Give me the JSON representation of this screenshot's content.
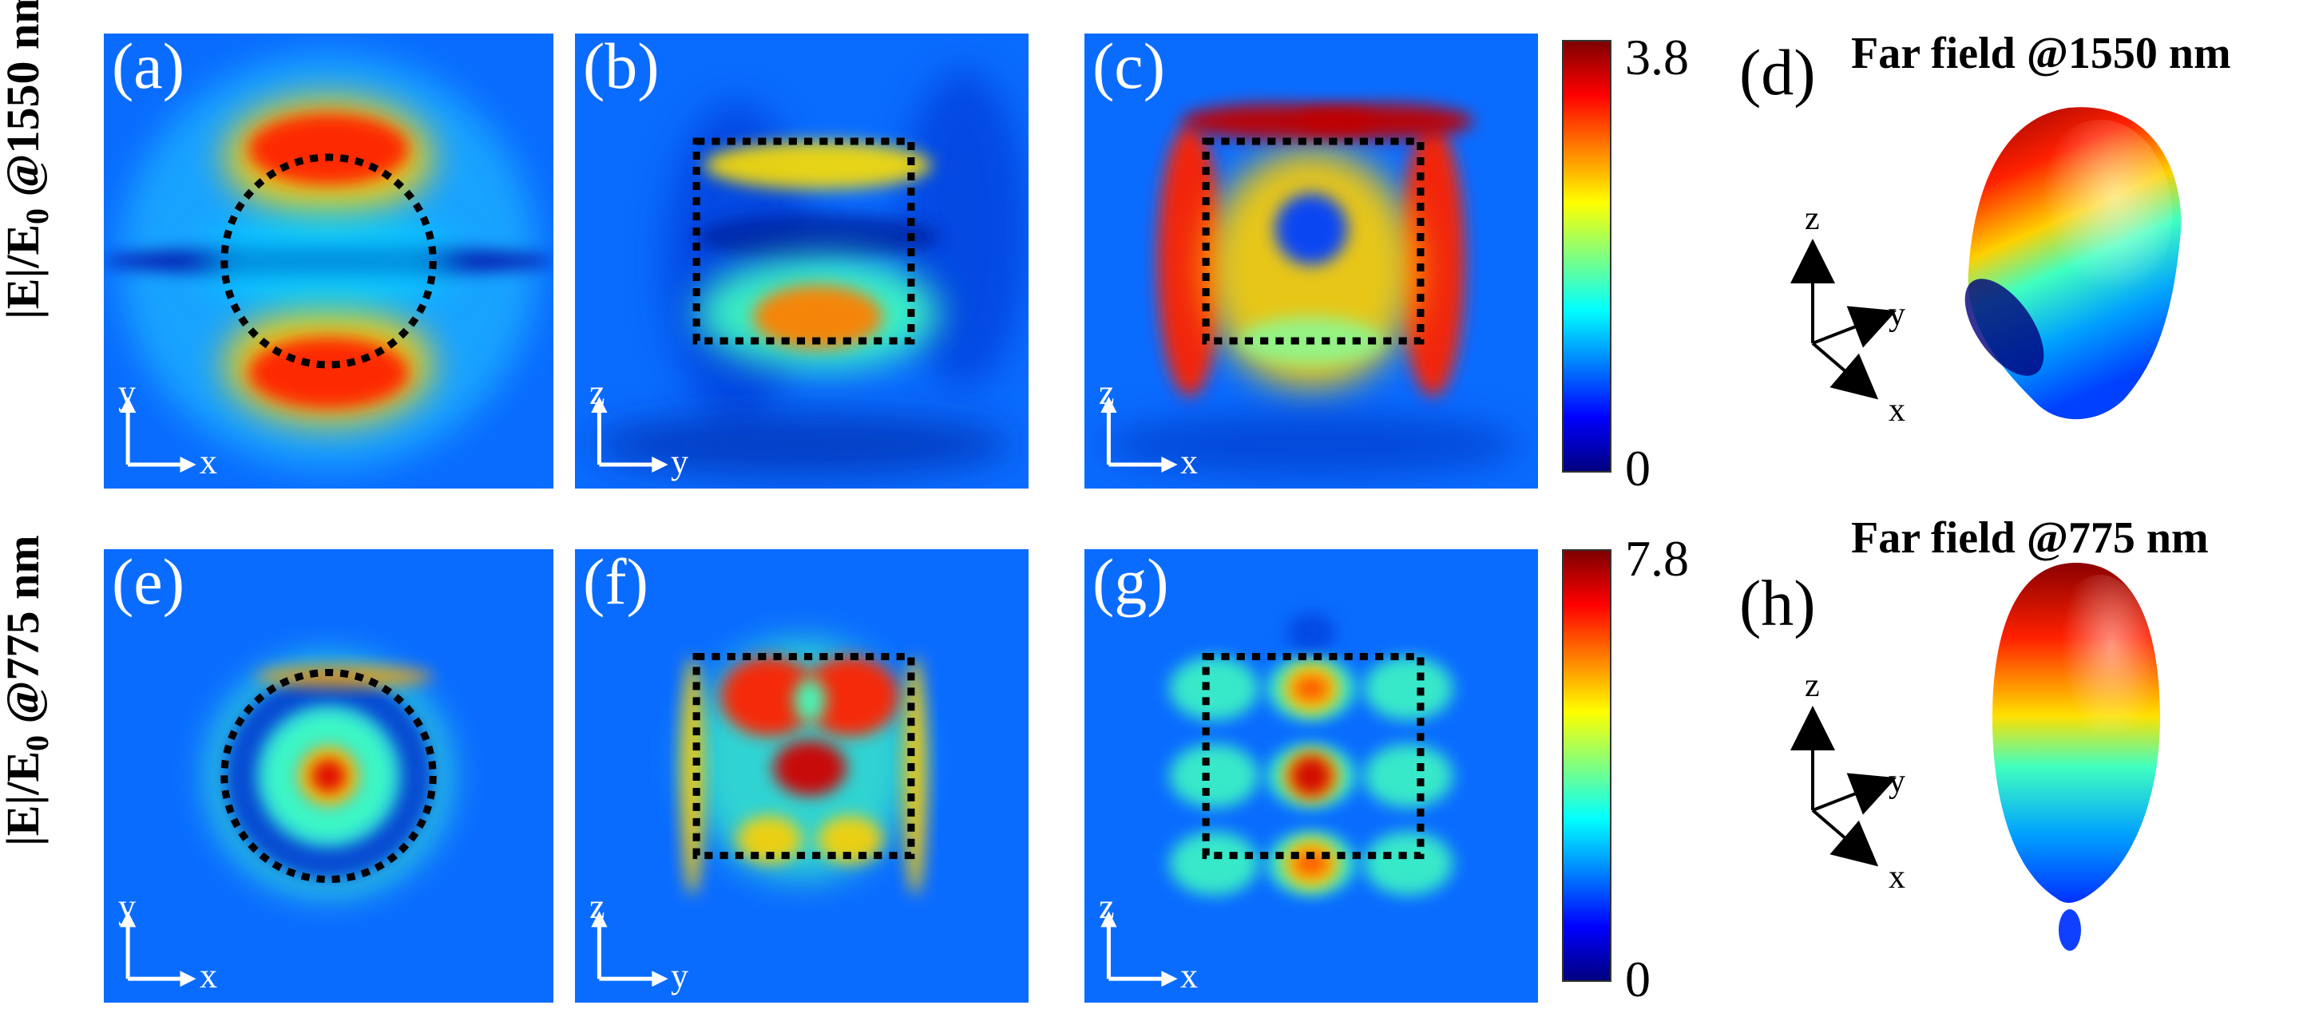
{
  "row_labels": {
    "top": {
      "main": "|E|/E",
      "sub": "0",
      "rest": " @1550 nm"
    },
    "bottom": {
      "main": "|E|/E",
      "sub": "0",
      "rest": " @775 nm"
    }
  },
  "panels": [
    {
      "id": "a",
      "label": "(a)",
      "h_axis": "x",
      "v_axis": "y",
      "boundary": "circle",
      "pattern": "dipole"
    },
    {
      "id": "b",
      "label": "(b)",
      "h_axis": "y",
      "v_axis": "z",
      "boundary": "rect",
      "pattern": "cavity-b"
    },
    {
      "id": "c",
      "label": "(c)",
      "h_axis": "x",
      "v_axis": "z",
      "boundary": "rect",
      "pattern": "cavity-c"
    },
    {
      "id": "e",
      "label": "(e)",
      "h_axis": "x",
      "v_axis": "y",
      "boundary": "circle",
      "pattern": "rings"
    },
    {
      "id": "f",
      "label": "(f)",
      "h_axis": "y",
      "v_axis": "z",
      "boundary": "rect",
      "pattern": "cavity-f"
    },
    {
      "id": "g",
      "label": "(g)",
      "h_axis": "x",
      "v_axis": "z",
      "boundary": "rect",
      "pattern": "grid-g"
    }
  ],
  "colorbars": [
    {
      "max": "3.8",
      "min": "0"
    },
    {
      "max": "7.8",
      "min": "0"
    }
  ],
  "colormap": [
    "#00007f",
    "#0000ff",
    "#0080ff",
    "#00ffff",
    "#80ff80",
    "#ffff00",
    "#ff8000",
    "#ff0000",
    "#7f0000"
  ],
  "far_field": [
    {
      "label": "(d)",
      "title": "Far field @1550 nm",
      "axes": [
        "z",
        "y",
        "x"
      ]
    },
    {
      "label": "(h)",
      "title": "Far field @775 nm",
      "axes": [
        "z",
        "y",
        "x"
      ]
    }
  ]
}
